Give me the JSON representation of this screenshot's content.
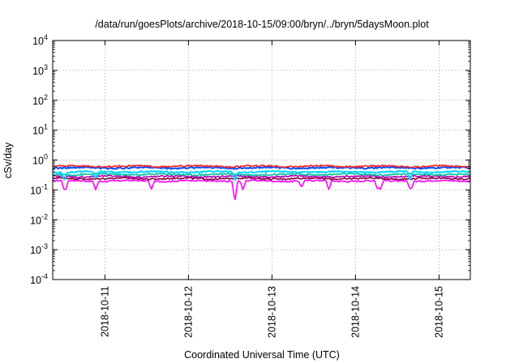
{
  "chart_data": {
    "type": "line",
    "title": "/data/run/goesPlots/archive/2018-10-15/09:00/bryn/../bryn/5daysMoon.plot",
    "xlabel": "Coordinated Universal Time (UTC)",
    "ylabel": "cSv/day",
    "y_scale": "log",
    "ylim": [
      0.0001,
      10000
    ],
    "y_ticks": [
      {
        "base": "10",
        "exp": "-4",
        "value": 0.0001
      },
      {
        "base": "10",
        "exp": "-3",
        "value": 0.001
      },
      {
        "base": "10",
        "exp": "-2",
        "value": 0.01
      },
      {
        "base": "10",
        "exp": "-1",
        "value": 0.1
      },
      {
        "base": "10",
        "exp": "0",
        "value": 1
      },
      {
        "base": "10",
        "exp": "1",
        "value": 10
      },
      {
        "base": "10",
        "exp": "2",
        "value": 100
      },
      {
        "base": "10",
        "exp": "3",
        "value": 1000
      },
      {
        "base": "10",
        "exp": "4",
        "value": 10000
      }
    ],
    "xlim": [
      "2018-10-10 09:00",
      "2018-10-15 09:00"
    ],
    "x_ticks": [
      "2018-10-11",
      "2018-10-12",
      "2018-10-13",
      "2018-10-14",
      "2018-10-15"
    ],
    "grid": true,
    "legend": "none",
    "series": [
      {
        "color": "#ff00ff",
        "level": 0.2,
        "dips": [
          [
            "2018-10-10 12:20",
            0.1
          ],
          [
            "2018-10-10 12:40",
            0.1
          ],
          [
            "2018-10-10 21:20",
            0.1
          ],
          [
            "2018-10-11 13:20",
            0.1
          ],
          [
            "2018-10-12 13:20",
            0.04
          ],
          [
            "2018-10-12 15:40",
            0.1
          ],
          [
            "2018-10-13 08:30",
            0.12
          ],
          [
            "2018-10-13 16:20",
            0.1
          ],
          [
            "2018-10-14 06:20",
            0.1
          ],
          [
            "2018-10-14 07:10",
            0.1
          ],
          [
            "2018-10-14 15:40",
            0.11
          ],
          [
            "2018-10-14 16:00",
            0.11
          ]
        ]
      },
      {
        "color": "#8b0040",
        "level": 0.24,
        "dips": []
      },
      {
        "color": "#b000b0",
        "level": 0.28,
        "dips": []
      },
      {
        "color": "#00c0a0",
        "level": 0.33,
        "dips": []
      },
      {
        "color": "#00d8ff",
        "level": 0.4,
        "dips": [
          [
            "2018-10-10 12:20",
            0.2
          ],
          [
            "2018-10-10 21:20",
            0.25
          ],
          [
            "2018-10-12 13:20",
            0.2
          ],
          [
            "2018-10-14 15:40",
            0.22
          ]
        ]
      },
      {
        "color": "#0050ff",
        "level": 0.55,
        "dips": []
      },
      {
        "color": "#ff2020",
        "level": 0.62,
        "dips": []
      }
    ]
  }
}
